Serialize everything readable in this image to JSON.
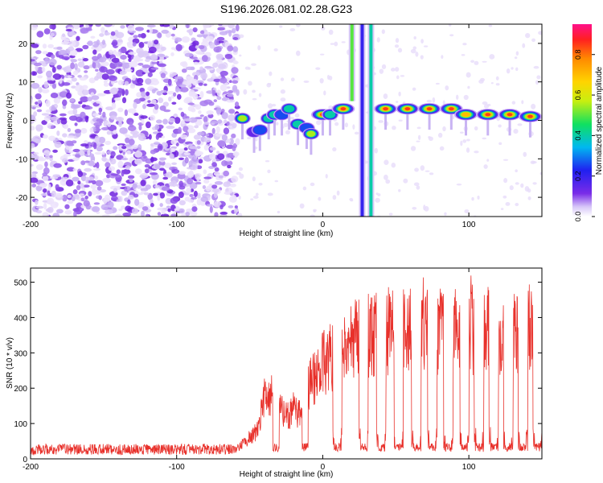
{
  "figure": {
    "title": "S196.2026.081.02.28.G23"
  },
  "colors": {
    "snr_line": "#e8302a",
    "axis": "#000000"
  },
  "chart_data": [
    {
      "type": "heatmap",
      "title": "S196.2026.081.02.28.G23",
      "xlabel": "Height of straight line (km)",
      "ylabel": "Frequency (Hz)",
      "xlim": [
        -200,
        150
      ],
      "ylim": [
        -25,
        25
      ],
      "xticks": [
        -200,
        -100,
        0,
        100
      ],
      "yticks": [
        -20,
        -10,
        0,
        10,
        20
      ],
      "colorbar": {
        "label": "Normalized spectral amplitude",
        "range": [
          0,
          0.95
        ],
        "ticks": [
          0.0,
          0.2,
          0.4,
          0.6,
          0.8
        ],
        "colormap": "rainbow"
      },
      "noise_region": {
        "x_from": -200,
        "x_to": -58,
        "description": "scattered low-amplitude speckle across all frequencies"
      },
      "vertical_streaks": [
        {
          "x": 20,
          "y_from": 5,
          "y_to": 25,
          "amplitude": 0.5
        },
        {
          "x": 27,
          "y_from": -25,
          "y_to": 25,
          "amplitude": 0.2
        },
        {
          "x": 33,
          "y_from": -25,
          "y_to": 25,
          "amplitude": 0.4
        }
      ],
      "frequency_track": [
        {
          "x": -55,
          "y": 0.5,
          "amplitude": 0.55
        },
        {
          "x": -47,
          "y": -3,
          "amplitude": 0.25
        },
        {
          "x": -43,
          "y": -2.5,
          "amplitude": 0.35
        },
        {
          "x": -37,
          "y": 0.5,
          "amplitude": 0.4
        },
        {
          "x": -33,
          "y": 1.5,
          "amplitude": 0.45
        },
        {
          "x": -28,
          "y": 1.5,
          "amplitude": 0.3
        },
        {
          "x": -23,
          "y": 3,
          "amplitude": 0.5
        },
        {
          "x": -17,
          "y": -1,
          "amplitude": 0.4
        },
        {
          "x": -11,
          "y": -2,
          "amplitude": 0.35
        },
        {
          "x": -8,
          "y": -3.5,
          "amplitude": 0.6
        },
        {
          "x": 0,
          "y": 1.5,
          "amplitude": 0.85
        },
        {
          "x": 5,
          "y": 1.5,
          "amplitude": 0.45
        },
        {
          "x": 14,
          "y": 3,
          "amplitude": 0.95
        },
        {
          "x": 43,
          "y": 3,
          "amplitude": 0.9
        },
        {
          "x": 58,
          "y": 3,
          "amplitude": 0.9
        },
        {
          "x": 73,
          "y": 3,
          "amplitude": 0.9
        },
        {
          "x": 88,
          "y": 3,
          "amplitude": 0.85
        },
        {
          "x": 98,
          "y": 1.5,
          "amplitude": 0.75
        },
        {
          "x": 113,
          "y": 1.5,
          "amplitude": 0.9
        },
        {
          "x": 128,
          "y": 1.5,
          "amplitude": 0.85
        },
        {
          "x": 142,
          "y": 1,
          "amplitude": 0.9
        }
      ]
    },
    {
      "type": "line",
      "xlabel": "Height of straight line (km)",
      "ylabel": "SNR (10 * v/v)",
      "xlim": [
        -200,
        150
      ],
      "ylim": [
        0,
        540
      ],
      "xticks": [
        -200,
        -100,
        0,
        100
      ],
      "yticks": [
        0,
        100,
        200,
        300,
        400,
        500
      ],
      "series": [
        {
          "name": "SNR",
          "baseline": [
            [
              -200,
              25
            ],
            [
              -60,
              25
            ],
            [
              -50,
              60
            ],
            [
              -45,
              80
            ],
            [
              -40,
              170
            ],
            [
              -35,
              180
            ],
            [
              -30,
              150
            ],
            [
              -25,
              120
            ],
            [
              -20,
              140
            ],
            [
              -15,
              120
            ],
            [
              -10,
              210
            ],
            [
              -5,
              230
            ],
            [
              0,
              270
            ],
            [
              10,
              300
            ],
            [
              20,
              330
            ],
            [
              30,
              350
            ],
            [
              40,
              360
            ],
            [
              150,
              360
            ]
          ],
          "dips": [
            -32,
            -12,
            10,
            28,
            40,
            52,
            64,
            75,
            86,
            97,
            107,
            117,
            127,
            137,
            147
          ],
          "dip_level": 20,
          "peak_max": 535
        }
      ]
    }
  ]
}
